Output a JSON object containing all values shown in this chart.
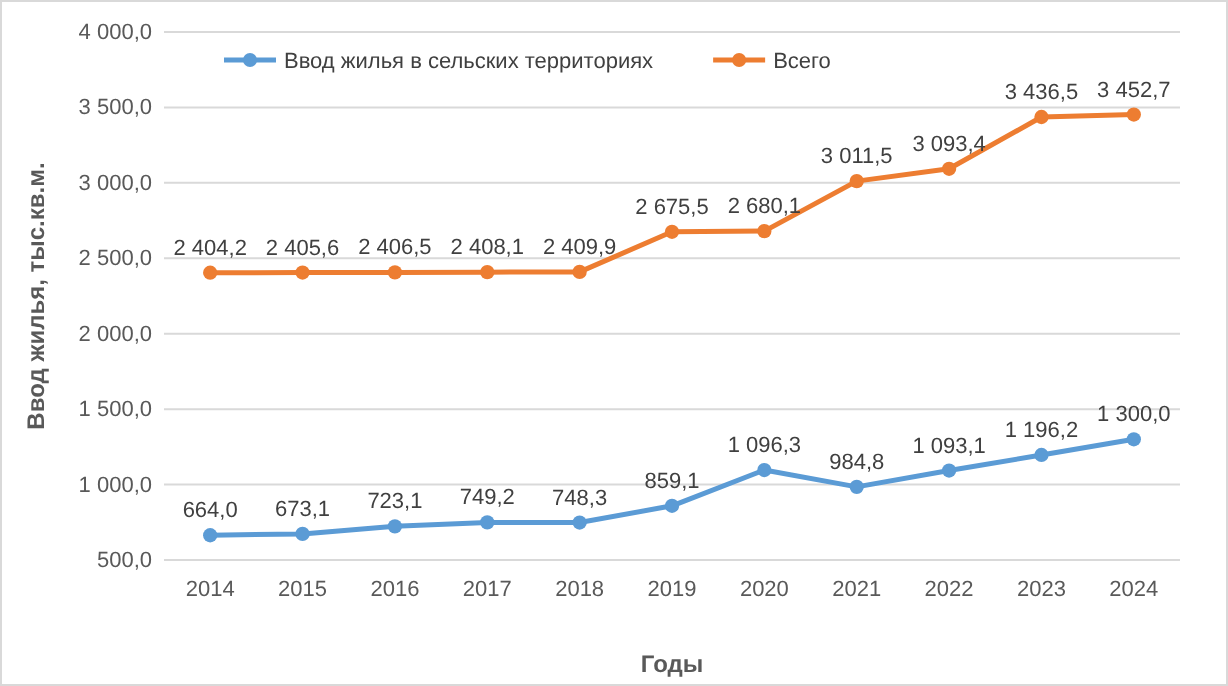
{
  "chart_data": {
    "type": "line",
    "xlabel": "Годы",
    "ylabel": "Ввод жилья, тыс.кв.м.",
    "categories": [
      "2014",
      "2015",
      "2016",
      "2017",
      "2018",
      "2019",
      "2020",
      "2021",
      "2022",
      "2023",
      "2024"
    ],
    "series": [
      {
        "name": "Ввод жилья в сельских территориях",
        "color": "#5b9bd5",
        "values": [
          664.0,
          673.1,
          723.1,
          749.2,
          748.3,
          859.1,
          1096.3,
          984.8,
          1093.1,
          1196.2,
          1300.0
        ],
        "value_labels": [
          "664,0",
          "673,1",
          "723,1",
          "749,2",
          "748,3",
          "859,1",
          "1 096,3",
          "984,8",
          "1 093,1",
          "1 196,2",
          "1 300,0"
        ]
      },
      {
        "name": "Всего",
        "color": "#ed7d31",
        "values": [
          2404.2,
          2405.6,
          2406.5,
          2408.1,
          2409.9,
          2675.5,
          2680.1,
          3011.5,
          3093.4,
          3436.5,
          3452.7
        ],
        "value_labels": [
          "2 404,2",
          "2 405,6",
          "2 406,5",
          "2 408,1",
          "2 409,9",
          "2 675,5",
          "2 680,1",
          "3 011,5",
          "3 093,4",
          "3 436,5",
          "3 452,7"
        ]
      }
    ],
    "ylim": [
      500,
      4000
    ],
    "yticks": [
      {
        "value": 500,
        "label": "500,0"
      },
      {
        "value": 1000,
        "label": "1 000,0"
      },
      {
        "value": 1500,
        "label": "1 500,0"
      },
      {
        "value": 2000,
        "label": "2 000,0"
      },
      {
        "value": 2500,
        "label": "2 500,0"
      },
      {
        "value": 3000,
        "label": "3 000,0"
      },
      {
        "value": 3500,
        "label": "3 500,0"
      },
      {
        "value": 4000,
        "label": "4 000,0"
      }
    ],
    "grid": "y",
    "legend": "top left",
    "marker": "circle",
    "line_style": "solid"
  }
}
